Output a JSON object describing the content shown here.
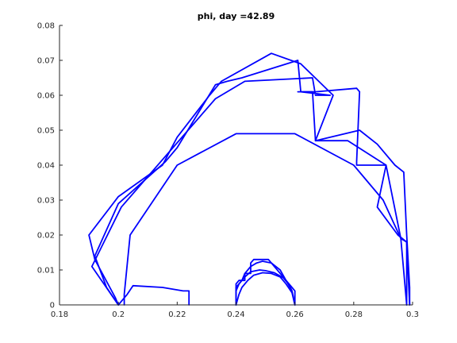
{
  "chart_data": {
    "type": "line",
    "title": "phi, day =42.89",
    "xlabel": "",
    "ylabel": "",
    "xlim": [
      0.18,
      0.3
    ],
    "ylim": [
      0,
      0.08
    ],
    "xticks": [
      0.18,
      0.2,
      0.22,
      0.24,
      0.26,
      0.28,
      0.3
    ],
    "yticks": [
      0,
      0.01,
      0.02,
      0.03,
      0.04,
      0.05,
      0.06,
      0.07,
      0.08
    ],
    "xtick_labels": [
      "0.18",
      "0.2",
      "0.22",
      "0.24",
      "0.26",
      "0.28",
      "0.3"
    ],
    "ytick_labels": [
      "0",
      "0.01",
      "0.02",
      "0.03",
      "0.04",
      "0.05",
      "0.06",
      "0.07",
      "0.08"
    ],
    "grid": false,
    "legend": "none",
    "color": "#0000ff",
    "series": [
      {
        "x": [
          0.2,
          0.199,
          0.192,
          0.19,
          0.2,
          0.215,
          0.22,
          0.231,
          0.235,
          0.252,
          0.262,
          0.273,
          0.267,
          0.282,
          0.288,
          0.294,
          0.297,
          0.298,
          0.299,
          0.299
        ],
        "y": [
          0,
          0.002,
          0.013,
          0.02,
          0.031,
          0.04,
          0.048,
          0.06,
          0.064,
          0.072,
          0.069,
          0.06,
          0.047,
          0.05,
          0.046,
          0.04,
          0.038,
          0.02,
          0.005,
          0
        ]
      },
      {
        "x": [
          0.2,
          0.196,
          0.192,
          0.2,
          0.216,
          0.22,
          0.233,
          0.237,
          0.242,
          0.261,
          0.262,
          0.266,
          0.267,
          0.278,
          0.291,
          0.296,
          0.298,
          0.299
        ],
        "y": [
          0,
          0.005,
          0.014,
          0.029,
          0.041,
          0.045,
          0.063,
          0.064,
          0.065,
          0.07,
          0.061,
          0.061,
          0.047,
          0.047,
          0.04,
          0.019,
          0.018,
          0
        ]
      },
      {
        "x": [
          0.2,
          0.191,
          0.201,
          0.233,
          0.243,
          0.266,
          0.267,
          0.272,
          0.262,
          0.261,
          0.267,
          0.281,
          0.282,
          0.281,
          0.281,
          0.291,
          0.288,
          0.295,
          0.298,
          0.298
        ],
        "y": [
          0,
          0.011,
          0.028,
          0.059,
          0.064,
          0.065,
          0.06,
          0.06,
          0.061,
          0.061,
          0.061,
          0.062,
          0.061,
          0.041,
          0.04,
          0.04,
          0.028,
          0.02,
          0.018,
          0
        ]
      },
      {
        "x": [
          0.202,
          0.202,
          0.204,
          0.22,
          0.24,
          0.26,
          0.28,
          0.29,
          0.296,
          0.298
        ],
        "y": [
          0,
          0.003,
          0.02,
          0.04,
          0.049,
          0.049,
          0.04,
          0.03,
          0.019,
          0
        ]
      },
      {
        "x": [
          0.2,
          0.203,
          0.205,
          0.215,
          0.222,
          0.224,
          0.224
        ],
        "y": [
          0,
          0.003,
          0.0055,
          0.005,
          0.004,
          0.004,
          0
        ]
      },
      {
        "x": [
          0.24,
          0.24,
          0.241,
          0.243,
          0.243,
          0.245,
          0.245,
          0.246,
          0.251,
          0.252,
          0.252,
          0.258,
          0.259,
          0.26,
          0.26
        ],
        "y": [
          0,
          0.006,
          0.007,
          0.007,
          0.009,
          0.009,
          0.012,
          0.013,
          0.013,
          0.012,
          0.012,
          0.006,
          0.005,
          0.004,
          0
        ]
      },
      {
        "x": [
          0.24,
          0.24,
          0.242,
          0.243,
          0.244,
          0.245,
          0.247,
          0.249,
          0.252,
          0.255,
          0.257,
          0.259,
          0.26
        ],
        "y": [
          0,
          0.005,
          0.007,
          0.009,
          0.01,
          0.011,
          0.012,
          0.0125,
          0.012,
          0.01,
          0.007,
          0.004,
          0
        ]
      },
      {
        "x": [
          0.24,
          0.24,
          0.241,
          0.243,
          0.245,
          0.248,
          0.25,
          0.253,
          0.256,
          0.258,
          0.259,
          0.26
        ],
        "y": [
          0,
          0.004,
          0.006,
          0.008,
          0.0095,
          0.01,
          0.0098,
          0.0092,
          0.0078,
          0.0058,
          0.004,
          0
        ]
      },
      {
        "x": [
          0.24,
          0.241,
          0.242,
          0.244,
          0.246,
          0.249,
          0.252,
          0.255,
          0.257,
          0.259,
          0.26
        ],
        "y": [
          0,
          0.003,
          0.005,
          0.007,
          0.0085,
          0.0092,
          0.009,
          0.008,
          0.006,
          0.0035,
          0
        ]
      }
    ]
  }
}
